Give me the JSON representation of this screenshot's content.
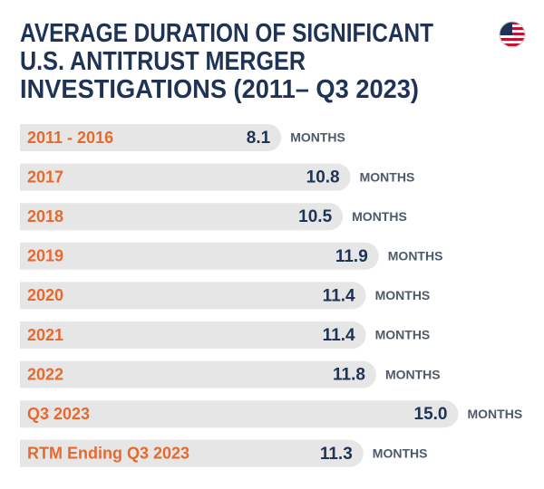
{
  "chart_data": {
    "type": "bar",
    "orientation": "horizontal",
    "title_lines": [
      "AVERAGE DURATION OF SIGNIFICANT",
      "U.S. ANTITRUST MERGER",
      "INVESTIGATIONS (2011– Q3 2023)"
    ],
    "categories": [
      "2011 - 2016",
      "2017",
      "2018",
      "2019",
      "2020",
      "2021",
      "2022",
      "Q3 2023",
      "RTM Ending Q3 2023"
    ],
    "values": [
      8.1,
      10.8,
      10.5,
      11.9,
      11.4,
      11.4,
      11.8,
      15.0,
      11.3
    ],
    "value_labels": [
      "8.1",
      "10.8",
      "10.5",
      "11.9",
      "11.4",
      "11.4",
      "11.8",
      "15.0",
      "11.3"
    ],
    "unit": "MONTHS",
    "color": "#e6e6e6"
  }
}
